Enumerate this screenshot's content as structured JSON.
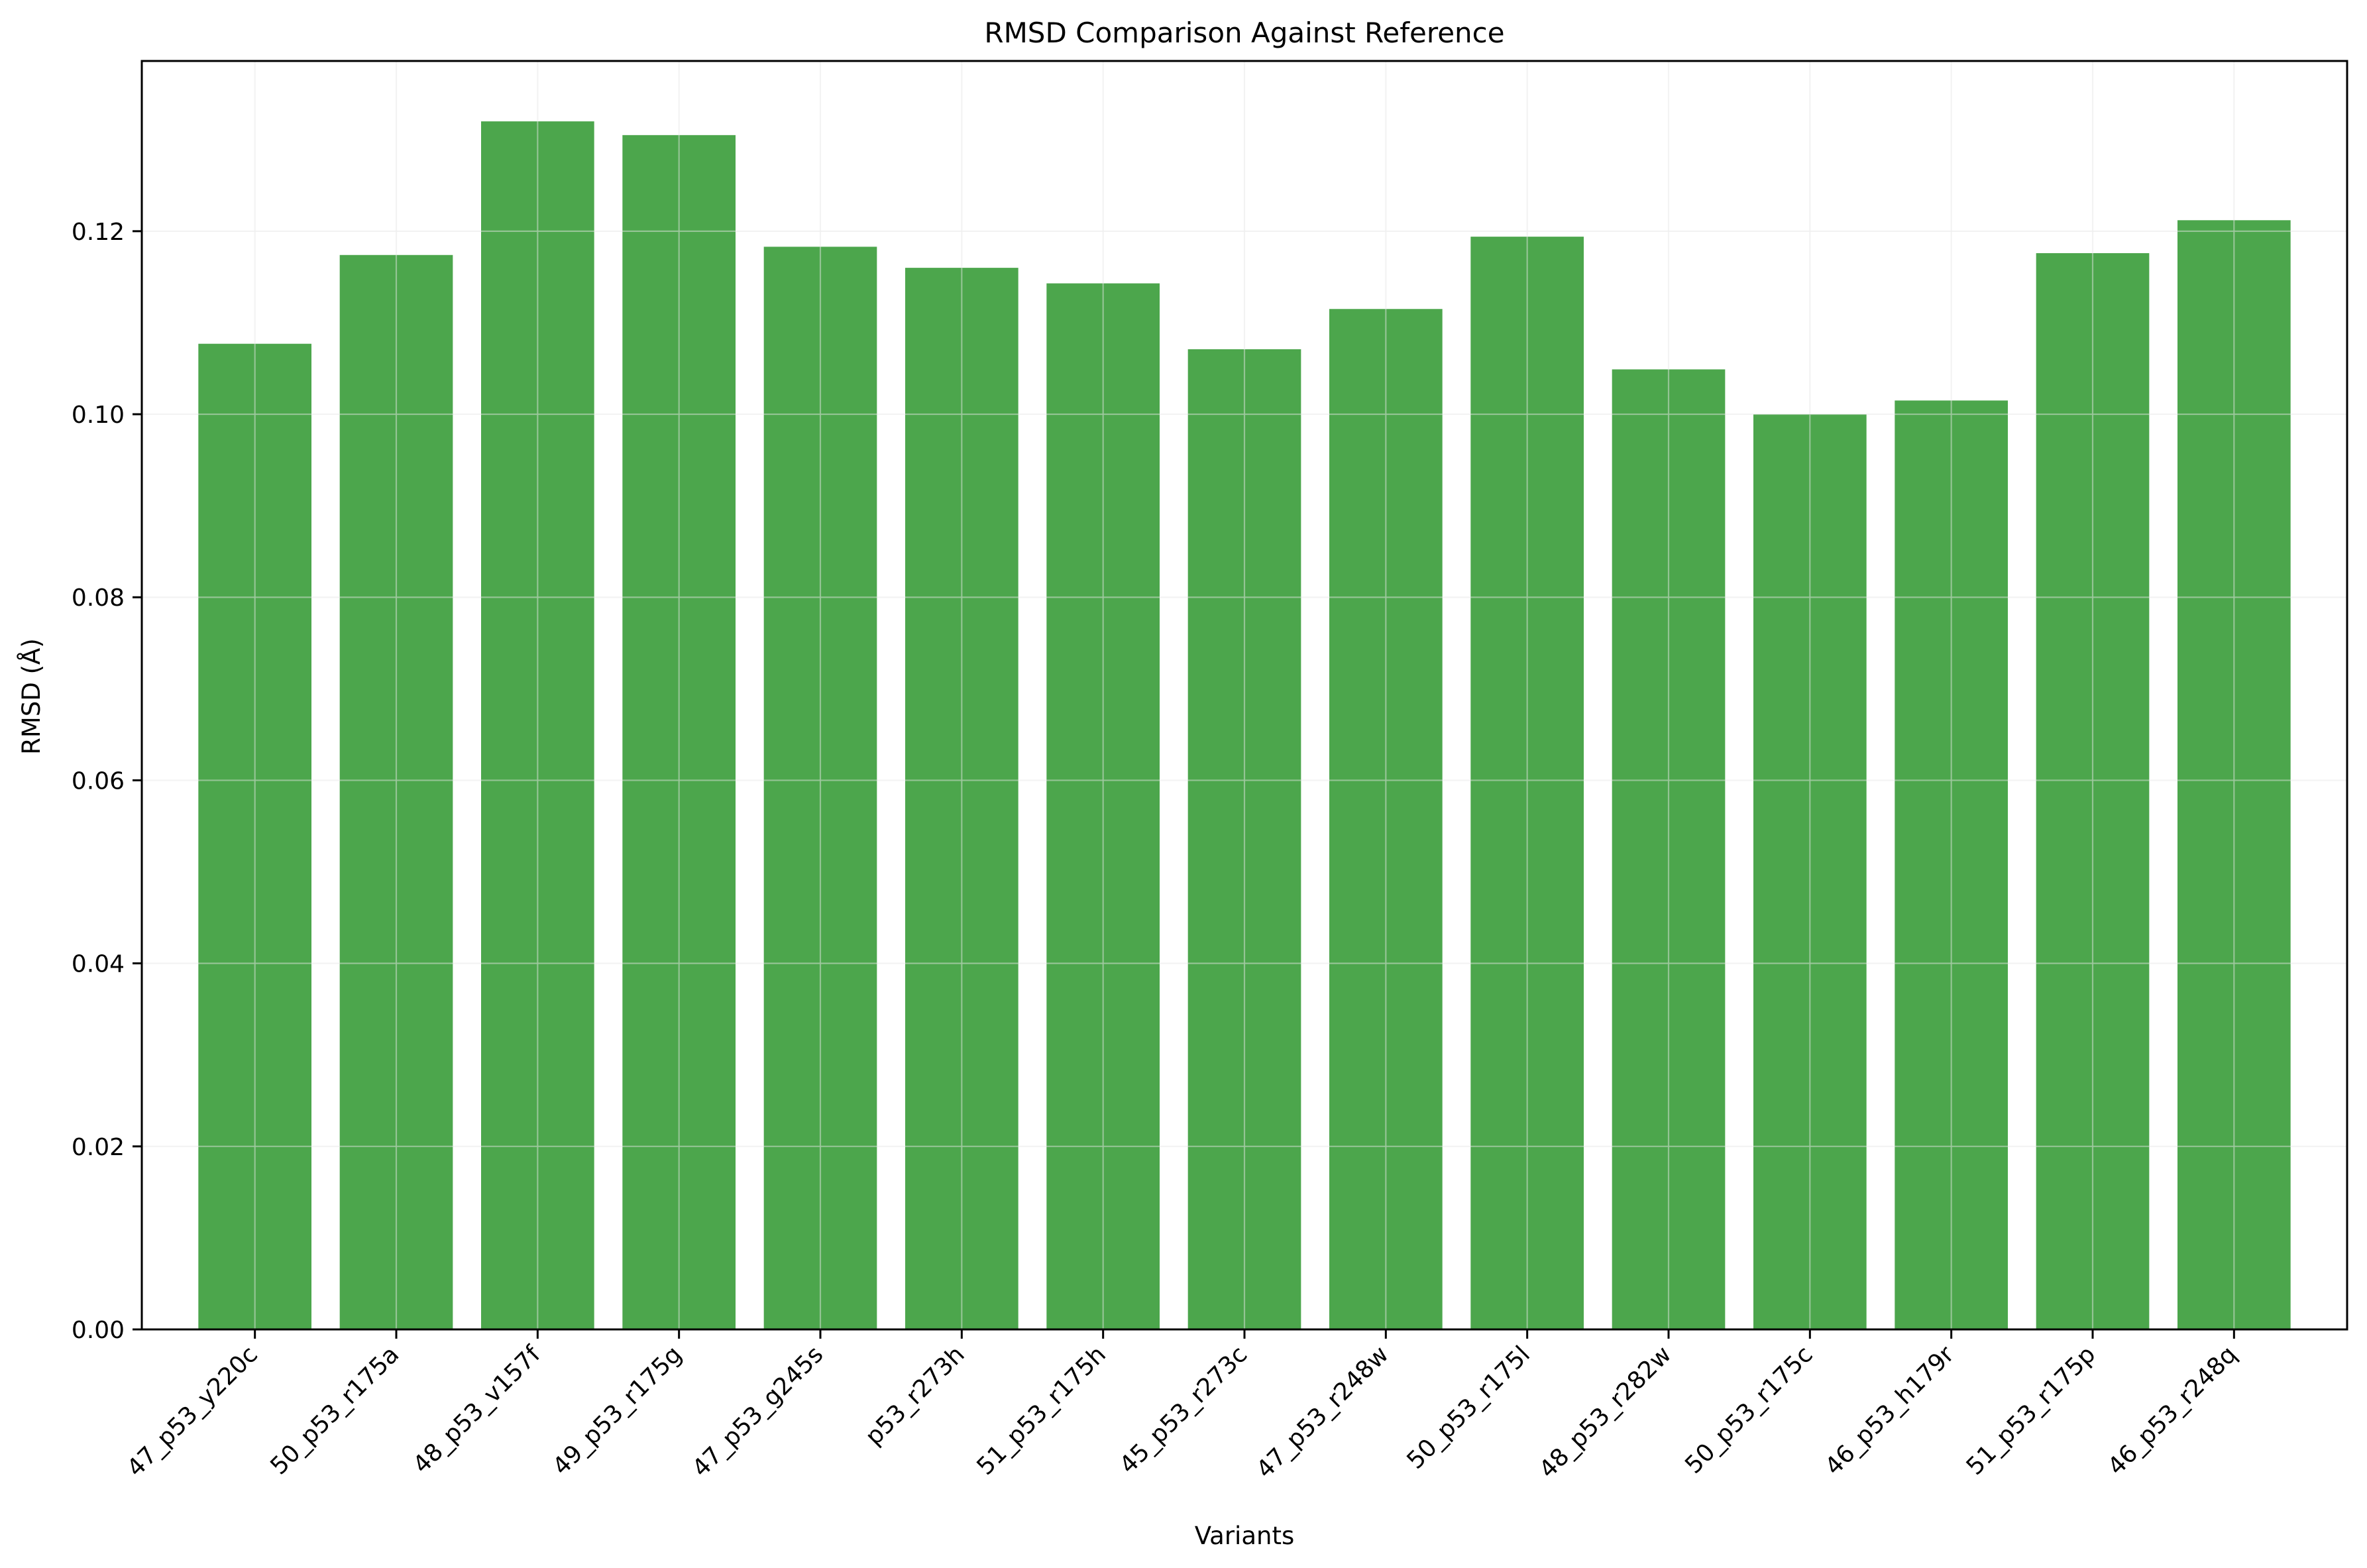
{
  "chart_data": {
    "type": "bar",
    "title": "RMSD Comparison Against Reference",
    "xlabel": "Variants",
    "ylabel": "RMSD (Å)",
    "categories": [
      "47_p53_y220c",
      "50_p53_r175a",
      "48_p53_v157f",
      "49_p53_r175g",
      "47_p53_g245s",
      "p53_r273h",
      "51_p53_r175h",
      "45_p53_r273c",
      "47_p53_r248w",
      "50_p53_r175l",
      "48_p53_r282w",
      "50_p53_r175c",
      "46_p53_h179r",
      "51_p53_r175p",
      "46_p53_r248q"
    ],
    "values": [
      0.1077,
      0.1174,
      0.132,
      0.1305,
      0.1183,
      0.116,
      0.1143,
      0.1071,
      0.1115,
      0.1194,
      0.1049,
      0.1,
      0.1015,
      0.1176,
      0.1212
    ],
    "ylim": [
      0,
      0.1386
    ],
    "yticks": [
      "0.00",
      "0.02",
      "0.04",
      "0.06",
      "0.08",
      "0.10",
      "0.12"
    ],
    "grid": true,
    "bar_color": "#4ca64c",
    "grid_color": "#e5e5e5",
    "axis_color": "#000000",
    "legend": "none"
  }
}
